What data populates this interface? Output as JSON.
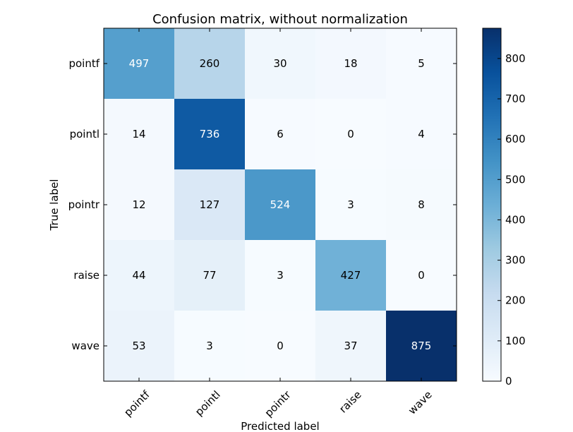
{
  "chart_data": {
    "type": "heatmap",
    "title": "Confusion matrix, without normalization",
    "xlabel": "Predicted label",
    "ylabel": "True label",
    "x_categories": [
      "pointf",
      "pointl",
      "pointr",
      "raise",
      "wave"
    ],
    "y_categories": [
      "pointf",
      "pointl",
      "pointr",
      "raise",
      "wave"
    ],
    "values": [
      [
        497,
        260,
        30,
        18,
        5
      ],
      [
        14,
        736,
        6,
        0,
        4
      ],
      [
        12,
        127,
        524,
        3,
        8
      ],
      [
        44,
        77,
        3,
        427,
        0
      ],
      [
        53,
        3,
        0,
        37,
        875
      ]
    ],
    "colormap": "Blues",
    "colorbar": {
      "min": 0,
      "max": 875,
      "ticks": [
        0,
        100,
        200,
        300,
        400,
        500,
        600,
        700,
        800
      ]
    },
    "x_tick_rotation_deg": 45,
    "cell_text_threshold": 437.5,
    "colors": {
      "text_dark": "#000000",
      "text_light": "#ffffff",
      "blues_stops": [
        "#f7fbff",
        "#deebf7",
        "#c6dbef",
        "#9ecae1",
        "#6baed6",
        "#4292c6",
        "#2171b5",
        "#08519c",
        "#08306b"
      ]
    }
  }
}
